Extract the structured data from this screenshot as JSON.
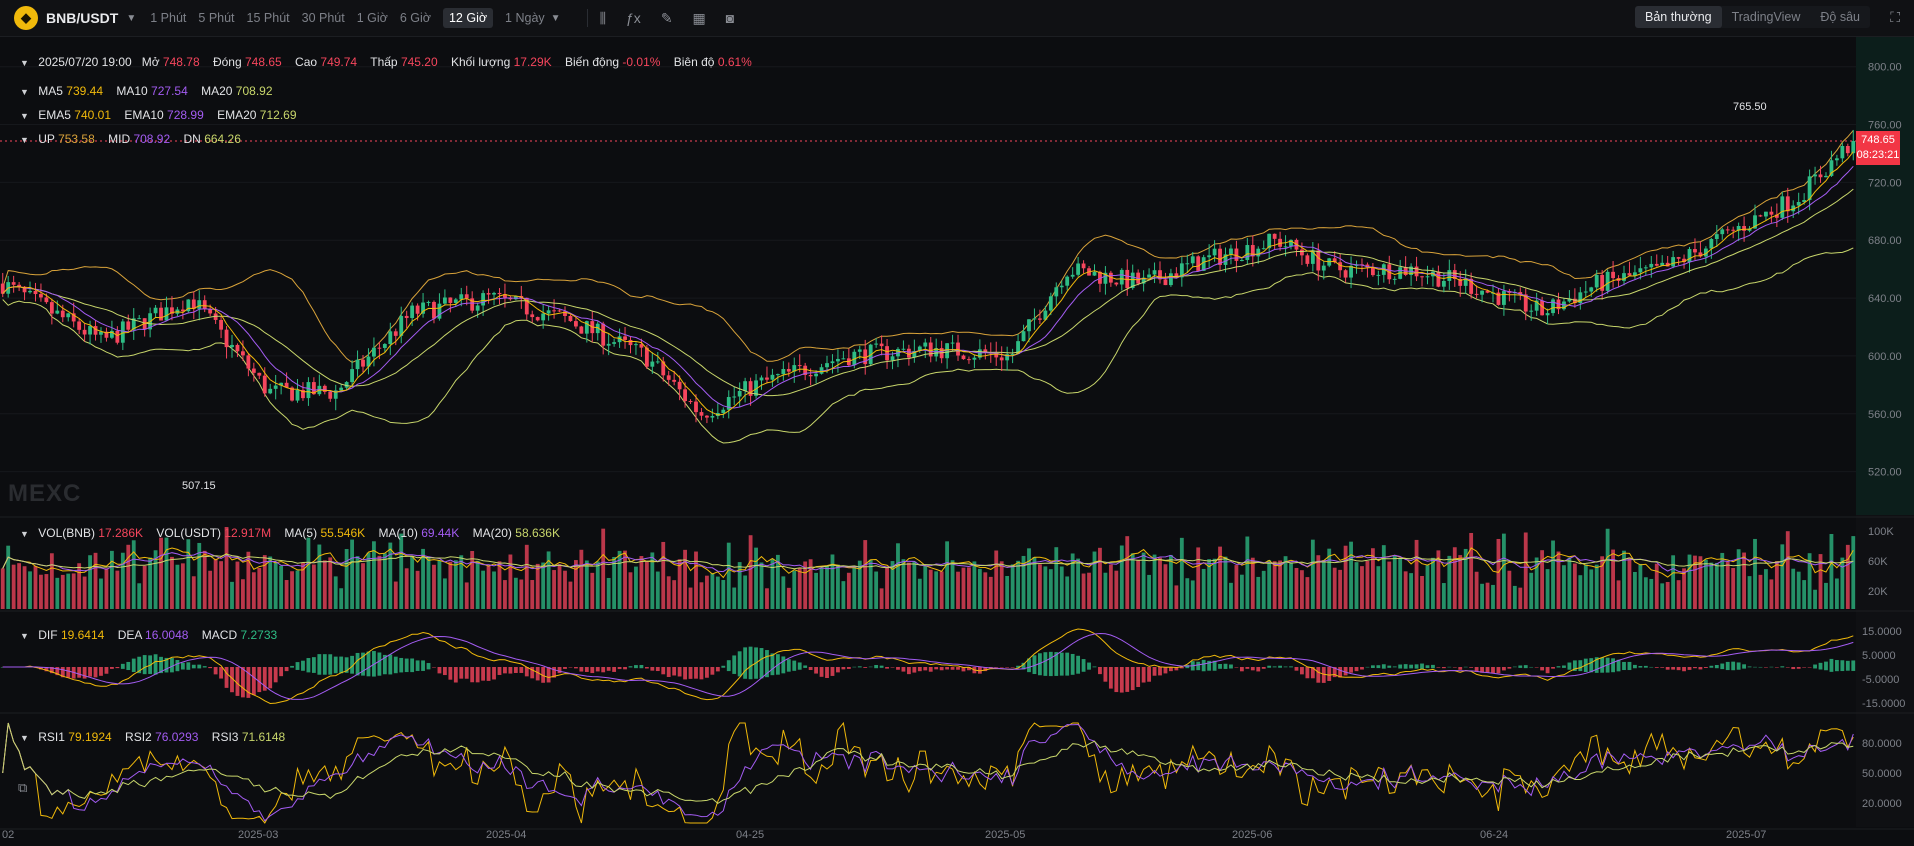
{
  "header": {
    "pair": "BNB/USDT",
    "timeframes": [
      "1 Phút",
      "5 Phút",
      "15 Phút",
      "30 Phút",
      "1 Giờ",
      "6 Giờ",
      "12 Giờ",
      "1 Ngày"
    ],
    "active_timeframe": "12 Giờ",
    "modes": [
      "Bản thường",
      "TradingView",
      "Độ sâu"
    ],
    "active_mode": "Bản thường",
    "tool_icons": [
      "candles-icon",
      "formula-icon",
      "pencil-icon",
      "layout-icon",
      "camera-icon"
    ]
  },
  "ohlc": {
    "date": "2025/07/20 19:00",
    "open_label": "Mở",
    "open": "748.78",
    "close_label": "Đóng",
    "close": "748.65",
    "high_label": "Cao",
    "high": "749.74",
    "low_label": "Thấp",
    "low": "745.20",
    "vol_label": "Khối lượng",
    "vol": "17.29K",
    "change_label": "Biến động",
    "change": "-0.01%",
    "amp_label": "Biên độ",
    "amp": "0.61%"
  },
  "ma": {
    "ma5_label": "MA5",
    "ma5": "739.44",
    "ma10_label": "MA10",
    "ma10": "727.54",
    "ma20_label": "MA20",
    "ma20": "708.92"
  },
  "ema": {
    "ema5_label": "EMA5",
    "ema5": "740.01",
    "ema10_label": "EMA10",
    "ema10": "728.99",
    "ema20_label": "EMA20",
    "ema20": "712.69"
  },
  "boll": {
    "up_label": "UP",
    "up": "753.58",
    "mid_label": "MID",
    "mid": "708.92",
    "dn_label": "DN",
    "dn": "664.26"
  },
  "vol": {
    "vol_label": "VOL(BNB)",
    "vol": "17.286K",
    "usdt_label": "VOL(USDT)",
    "usdt": "12.917M",
    "ma5_label": "MA(5)",
    "ma5": "55.546K",
    "ma10_label": "MA(10)",
    "ma10": "69.44K",
    "ma20_label": "MA(20)",
    "ma20": "58.636K"
  },
  "macd": {
    "dif_label": "DIF",
    "dif": "19.6414",
    "dea_label": "DEA",
    "dea": "16.0048",
    "macd_label": "MACD",
    "macd": "7.2733"
  },
  "rsi": {
    "rsi1_label": "RSI1",
    "rsi1": "79.1924",
    "rsi2_label": "RSI2",
    "rsi2": "76.0293",
    "rsi3_label": "RSI3",
    "rsi3": "71.6148"
  },
  "watermark": "MEXC",
  "last_price": "748.65",
  "countdown": "08:23:21",
  "high_mark": "765.50",
  "low_mark": "507.15",
  "colors": {
    "up": "#2ebd85",
    "down": "#f6465d",
    "ma5": "#f0b90b",
    "ma10": "#a35cf2",
    "ma20": "#c8d66b",
    "boll": "#d9a33a"
  },
  "chart_data": {
    "type": "candlestick",
    "interval": "12h",
    "price_axis": {
      "ticks": [
        "800.00",
        "760.00",
        "720.00",
        "680.00",
        "640.00",
        "600.00",
        "560.00",
        "520.00"
      ],
      "ylim": [
        490,
        815
      ]
    },
    "volume_axis": {
      "ticks": [
        "100K",
        "60K",
        "20K"
      ]
    },
    "macd_axis": {
      "ticks": [
        "15.0000",
        "5.0000",
        "-5.0000",
        "-15.0000"
      ]
    },
    "rsi_axis": {
      "ticks": [
        "80.0000",
        "50.0000",
        "20.0000"
      ]
    },
    "x_ticks": [
      "02",
      "2025-03",
      "2025-04",
      "04-25",
      "2025-05",
      "2025-06",
      "06-24",
      "2025-07"
    ],
    "price_path": {
      "start": "2025-02-03",
      "end": "2025-07-20",
      "candles": 340,
      "anchors": [
        [
          "2025-02-03",
          650
        ],
        [
          "2025-02-12",
          610
        ],
        [
          "2025-02-20",
          640
        ],
        [
          "2025-02-27",
          575
        ],
        [
          "2025-03-05",
          575
        ],
        [
          "2025-03-12",
          630
        ],
        [
          "2025-03-19",
          640
        ],
        [
          "2025-03-26",
          625
        ],
        [
          "2025-04-02",
          600
        ],
        [
          "2025-04-07",
          560
        ],
        [
          "2025-04-12",
          580
        ],
        [
          "2025-04-20",
          600
        ],
        [
          "2025-04-28",
          605
        ],
        [
          "2025-05-05",
          600
        ],
        [
          "2025-05-10",
          660
        ],
        [
          "2025-05-17",
          650
        ],
        [
          "2025-05-22",
          665
        ],
        [
          "2025-05-29",
          680
        ],
        [
          "2025-06-03",
          660
        ],
        [
          "2025-06-10",
          660
        ],
        [
          "2025-06-15",
          650
        ],
        [
          "2025-06-22",
          630
        ],
        [
          "2025-06-27",
          650
        ],
        [
          "2025-07-03",
          660
        ],
        [
          "2025-07-10",
          690
        ],
        [
          "2025-07-15",
          710
        ],
        [
          "2025-07-20",
          748.65
        ]
      ]
    }
  }
}
